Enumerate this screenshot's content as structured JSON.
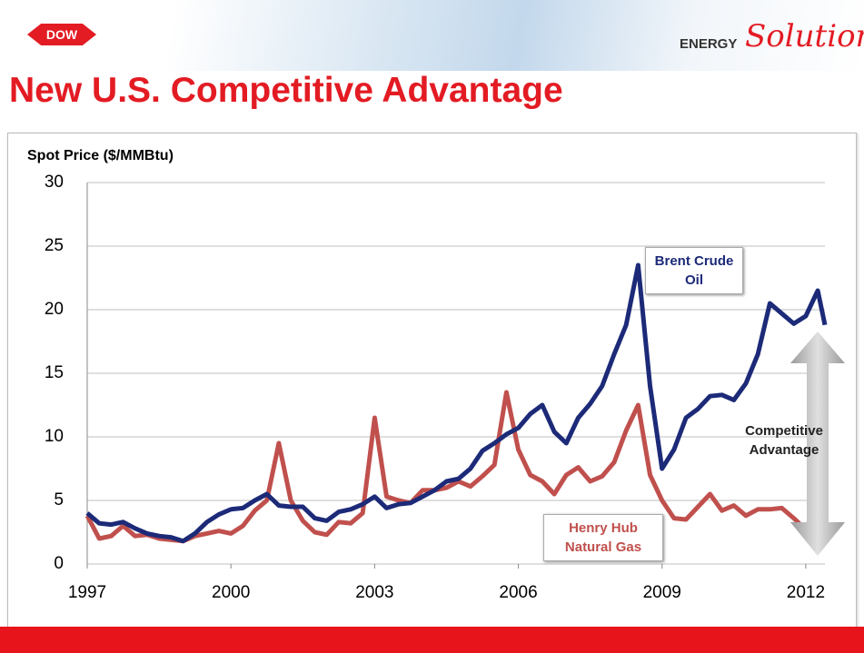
{
  "slide": {
    "logo": "DOW",
    "brand_prefix": "ENERGY",
    "brand_name": "Solutions",
    "title": "New U.S. Competitive Advantage"
  },
  "chart_data": {
    "type": "line",
    "y_label": "Spot Price ($/MMBtu)",
    "x": [
      1997,
      1997.25,
      1997.5,
      1997.75,
      1998,
      1998.25,
      1998.5,
      1998.75,
      1999,
      1999.25,
      1999.5,
      1999.75,
      2000,
      2000.25,
      2000.5,
      2000.75,
      2001,
      2001.25,
      2001.5,
      2001.75,
      2002,
      2002.25,
      2002.5,
      2002.75,
      2003,
      2003.25,
      2003.5,
      2003.75,
      2004,
      2004.25,
      2004.5,
      2004.75,
      2005,
      2005.25,
      2005.5,
      2005.75,
      2006,
      2006.25,
      2006.5,
      2006.75,
      2007,
      2007.25,
      2007.5,
      2007.75,
      2008,
      2008.25,
      2008.5,
      2008.75,
      2009,
      2009.25,
      2009.5,
      2009.75,
      2010,
      2010.25,
      2010.5,
      2010.75,
      2011,
      2011.25,
      2011.5,
      2011.75,
      2012,
      2012.25,
      2012.4
    ],
    "series": [
      {
        "name": "Brent Crude Oil",
        "color": "#1c2a78",
        "values": [
          4.0,
          3.2,
          3.1,
          3.3,
          2.8,
          2.4,
          2.2,
          2.1,
          1.8,
          2.4,
          3.3,
          3.9,
          4.3,
          4.4,
          5.0,
          5.5,
          4.6,
          4.5,
          4.5,
          3.6,
          3.4,
          4.1,
          4.3,
          4.7,
          5.3,
          4.4,
          4.7,
          4.8,
          5.3,
          5.8,
          6.5,
          6.7,
          7.5,
          8.9,
          9.5,
          10.2,
          10.7,
          11.8,
          12.5,
          10.4,
          9.5,
          11.5,
          12.6,
          14.0,
          16.5,
          18.8,
          23.5,
          14.0,
          7.5,
          9.0,
          11.5,
          12.2,
          13.2,
          13.3,
          12.9,
          14.2,
          16.5,
          20.5,
          19.7,
          18.9,
          19.5,
          21.5,
          18.8
        ]
      },
      {
        "name": "Henry Hub Natural Gas",
        "color": "#c0504d",
        "values": [
          3.8,
          2.0,
          2.2,
          3.0,
          2.2,
          2.3,
          2.0,
          1.9,
          1.8,
          2.2,
          2.4,
          2.6,
          2.4,
          3.0,
          4.2,
          5.0,
          9.5,
          5.0,
          3.4,
          2.5,
          2.3,
          3.3,
          3.2,
          4.0,
          11.5,
          5.3,
          5.0,
          4.8,
          5.8,
          5.8,
          6.0,
          6.5,
          6.1,
          6.9,
          7.8,
          13.5,
          9.0,
          7.0,
          6.5,
          5.5,
          7.0,
          7.6,
          6.5,
          6.9,
          8.0,
          10.5,
          12.5,
          7.0,
          5.0,
          3.6,
          3.5,
          4.5,
          5.5,
          4.2,
          4.6,
          3.8,
          4.3,
          4.3,
          4.4,
          3.6,
          2.7,
          2.0,
          2.4
        ]
      }
    ],
    "xlim": [
      1997,
      2012.4
    ],
    "xticks": [
      1997,
      2000,
      2003,
      2006,
      2009,
      2012
    ],
    "ylim": [
      0,
      30
    ],
    "yticks": [
      0,
      5,
      10,
      15,
      20,
      25,
      30
    ],
    "grid": true,
    "annotations": [
      "Competitive Advantage"
    ]
  }
}
